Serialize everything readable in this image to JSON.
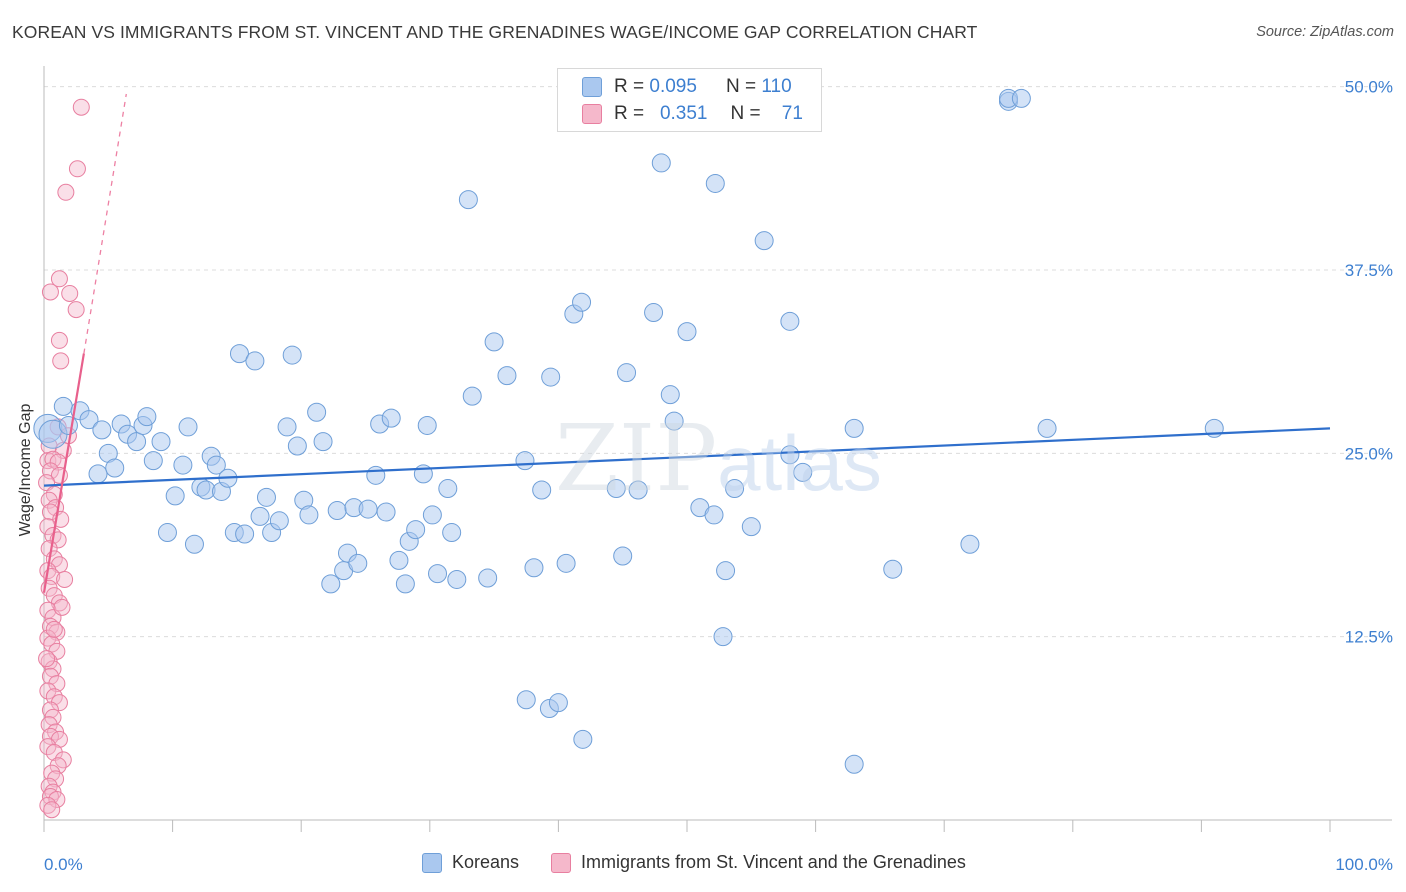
{
  "header": {
    "title": "KOREAN VS IMMIGRANTS FROM ST. VINCENT AND THE GRENADINES WAGE/INCOME GAP CORRELATION CHART",
    "source": "Source: ZipAtlas.com"
  },
  "watermark": {
    "zip": "ZIP",
    "atlas": "atlas"
  },
  "legend_top": {
    "rows": [
      {
        "r_label": "R =",
        "r_value": "0.095",
        "n_label": "N =",
        "n_value": "110"
      },
      {
        "r_label": "R =",
        "r_value": "0.351",
        "n_label": "N =",
        "n_value": "71"
      }
    ]
  },
  "colors": {
    "blue_fill": "#aac8ef",
    "blue_stroke": "#6f9fd8",
    "blue_line": "#2f6fcc",
    "pink_fill": "#f5b8cb",
    "pink_stroke": "#e87fa0",
    "pink_line": "#e8608c",
    "axis_label": "#3d7fd0",
    "grid": "#dcdcdc"
  },
  "chart_data": {
    "type": "scatter",
    "title": "KOREAN VS IMMIGRANTS FROM ST. VINCENT AND THE GRENADINES WAGE/INCOME GAP CORRELATION CHART",
    "xlabel": "",
    "ylabel": "Wage/Income Gap",
    "xlim": [
      0,
      100
    ],
    "ylim": [
      0,
      51
    ],
    "x_tick_labels": [
      "0.0%",
      "100.0%"
    ],
    "y_ticks": [
      12.5,
      25.0,
      37.5,
      50.0
    ],
    "y_tick_labels": [
      "12.5%",
      "25.0%",
      "37.5%",
      "50.0%"
    ],
    "grid": true,
    "legend_position": "bottom",
    "series": [
      {
        "name": "Koreans",
        "color": "#aac8ef",
        "trend": {
          "x": [
            0,
            100
          ],
          "y": [
            22.8,
            26.7
          ]
        },
        "points": [
          [
            0.3,
            26.7
          ],
          [
            0.7,
            26.3
          ],
          [
            1.5,
            28.2
          ],
          [
            1.9,
            26.9
          ],
          [
            2.8,
            27.9
          ],
          [
            3.5,
            27.3
          ],
          [
            4.2,
            23.6
          ],
          [
            4.5,
            26.6
          ],
          [
            5,
            25.0
          ],
          [
            5.5,
            24.0
          ],
          [
            6.0,
            27.0
          ],
          [
            6.5,
            26.3
          ],
          [
            7.2,
            25.8
          ],
          [
            7.7,
            26.9
          ],
          [
            8.0,
            27.5
          ],
          [
            8.5,
            24.5
          ],
          [
            9.1,
            25.8
          ],
          [
            9.6,
            19.6
          ],
          [
            10.2,
            22.1
          ],
          [
            10.8,
            24.2
          ],
          [
            11.2,
            26.8
          ],
          [
            11.7,
            18.8
          ],
          [
            12.2,
            22.7
          ],
          [
            12.6,
            22.5
          ],
          [
            13.0,
            24.8
          ],
          [
            13.4,
            24.2
          ],
          [
            13.8,
            22.4
          ],
          [
            14.3,
            23.3
          ],
          [
            14.8,
            19.6
          ],
          [
            15.2,
            31.8
          ],
          [
            15.6,
            19.5
          ],
          [
            16.4,
            31.3
          ],
          [
            16.8,
            20.7
          ],
          [
            17.3,
            22.0
          ],
          [
            17.7,
            19.6
          ],
          [
            18.3,
            20.4
          ],
          [
            18.9,
            26.8
          ],
          [
            19.3,
            31.7
          ],
          [
            19.7,
            25.5
          ],
          [
            20.2,
            21.8
          ],
          [
            20.6,
            20.8
          ],
          [
            21.2,
            27.8
          ],
          [
            21.7,
            25.8
          ],
          [
            22.3,
            16.1
          ],
          [
            22.8,
            21.1
          ],
          [
            23.3,
            17.0
          ],
          [
            23.6,
            18.2
          ],
          [
            24.1,
            21.3
          ],
          [
            24.4,
            17.5
          ],
          [
            25.2,
            21.2
          ],
          [
            25.8,
            23.5
          ],
          [
            26.1,
            27.0
          ],
          [
            26.6,
            21.0
          ],
          [
            27.0,
            27.4
          ],
          [
            27.6,
            17.7
          ],
          [
            28.1,
            16.1
          ],
          [
            28.4,
            19.0
          ],
          [
            28.9,
            19.8
          ],
          [
            29.5,
            23.6
          ],
          [
            29.8,
            26.9
          ],
          [
            30.2,
            20.8
          ],
          [
            30.6,
            16.8
          ],
          [
            31.4,
            22.6
          ],
          [
            31.7,
            19.6
          ],
          [
            32.1,
            16.4
          ],
          [
            33.0,
            42.3
          ],
          [
            33.3,
            28.9
          ],
          [
            34.5,
            16.5
          ],
          [
            35.0,
            32.6
          ],
          [
            36.0,
            30.3
          ],
          [
            37.4,
            24.5
          ],
          [
            37.5,
            8.2
          ],
          [
            38.1,
            17.2
          ],
          [
            38.7,
            22.5
          ],
          [
            39.3,
            7.6
          ],
          [
            39.4,
            30.2
          ],
          [
            40.0,
            8.0
          ],
          [
            40.6,
            17.5
          ],
          [
            41.2,
            34.5
          ],
          [
            41.8,
            35.3
          ],
          [
            41.9,
            5.5
          ],
          [
            44.5,
            22.6
          ],
          [
            45.0,
            18.0
          ],
          [
            45.3,
            30.5
          ],
          [
            46.2,
            22.5
          ],
          [
            47.4,
            34.6
          ],
          [
            48.0,
            44.8
          ],
          [
            48.7,
            29.0
          ],
          [
            49.0,
            27.2
          ],
          [
            50.0,
            33.3
          ],
          [
            51.0,
            21.3
          ],
          [
            52.1,
            20.8
          ],
          [
            52.2,
            43.4
          ],
          [
            52.8,
            12.5
          ],
          [
            53.0,
            17.0
          ],
          [
            53.7,
            22.6
          ],
          [
            55.0,
            20.0
          ],
          [
            56.0,
            39.5
          ],
          [
            58.0,
            34.0
          ],
          [
            58.0,
            24.9
          ],
          [
            59.0,
            23.7
          ],
          [
            63.0,
            26.7
          ],
          [
            63.0,
            3.8
          ],
          [
            66.0,
            17.1
          ],
          [
            72.0,
            18.8
          ],
          [
            75.0,
            49.0
          ],
          [
            75.0,
            49.2
          ],
          [
            76.0,
            49.2
          ],
          [
            78.0,
            26.7
          ],
          [
            91.0,
            26.7
          ]
        ]
      },
      {
        "name": "Immigrants from St. Vincent and the Grenadines",
        "color": "#f5b8cb",
        "trend": {
          "x": [
            0,
            3.1
          ],
          "y": [
            15.5,
            31.8
          ],
          "dashed_x": [
            3.1,
            6.4
          ],
          "dashed_y": [
            31.8,
            49.5
          ]
        },
        "points": [
          [
            2.9,
            48.6
          ],
          [
            2.6,
            44.4
          ],
          [
            1.7,
            42.8
          ],
          [
            1.2,
            36.9
          ],
          [
            0.5,
            36.0
          ],
          [
            2.0,
            35.9
          ],
          [
            2.5,
            34.8
          ],
          [
            1.2,
            32.7
          ],
          [
            1.3,
            31.3
          ],
          [
            1.1,
            26.8
          ],
          [
            1.9,
            26.2
          ],
          [
            0.4,
            25.5
          ],
          [
            1.5,
            25.2
          ],
          [
            0.3,
            24.5
          ],
          [
            0.7,
            24.6
          ],
          [
            1.1,
            24.4
          ],
          [
            0.5,
            23.8
          ],
          [
            1.2,
            23.5
          ],
          [
            0.2,
            23.0
          ],
          [
            0.8,
            22.2
          ],
          [
            0.4,
            21.8
          ],
          [
            0.9,
            21.3
          ],
          [
            0.5,
            21.0
          ],
          [
            1.3,
            20.5
          ],
          [
            0.3,
            20.0
          ],
          [
            0.7,
            19.4
          ],
          [
            1.1,
            19.1
          ],
          [
            0.4,
            18.5
          ],
          [
            0.8,
            17.8
          ],
          [
            1.2,
            17.4
          ],
          [
            0.3,
            17.0
          ],
          [
            0.6,
            16.6
          ],
          [
            1.6,
            16.4
          ],
          [
            0.4,
            15.8
          ],
          [
            0.8,
            15.3
          ],
          [
            1.2,
            14.8
          ],
          [
            0.3,
            14.3
          ],
          [
            0.7,
            13.8
          ],
          [
            0.5,
            13.2
          ],
          [
            1.0,
            12.8
          ],
          [
            0.3,
            12.4
          ],
          [
            0.6,
            12.0
          ],
          [
            1.0,
            11.5
          ],
          [
            0.4,
            10.8
          ],
          [
            0.7,
            10.3
          ],
          [
            0.5,
            9.8
          ],
          [
            1.0,
            9.3
          ],
          [
            0.3,
            8.8
          ],
          [
            0.8,
            8.4
          ],
          [
            1.2,
            8.0
          ],
          [
            0.5,
            7.5
          ],
          [
            0.7,
            7.0
          ],
          [
            0.4,
            6.5
          ],
          [
            0.9,
            6.0
          ],
          [
            0.5,
            5.7
          ],
          [
            1.2,
            5.5
          ],
          [
            0.3,
            5.0
          ],
          [
            0.8,
            4.6
          ],
          [
            1.5,
            4.1
          ],
          [
            1.1,
            3.7
          ],
          [
            0.6,
            3.2
          ],
          [
            0.9,
            2.8
          ],
          [
            0.4,
            2.3
          ],
          [
            0.7,
            1.9
          ],
          [
            0.5,
            1.6
          ],
          [
            1.0,
            1.4
          ],
          [
            0.3,
            1.0
          ],
          [
            0.6,
            0.7
          ],
          [
            0.8,
            13.0
          ],
          [
            1.4,
            14.5
          ],
          [
            0.2,
            11.0
          ]
        ]
      }
    ]
  }
}
